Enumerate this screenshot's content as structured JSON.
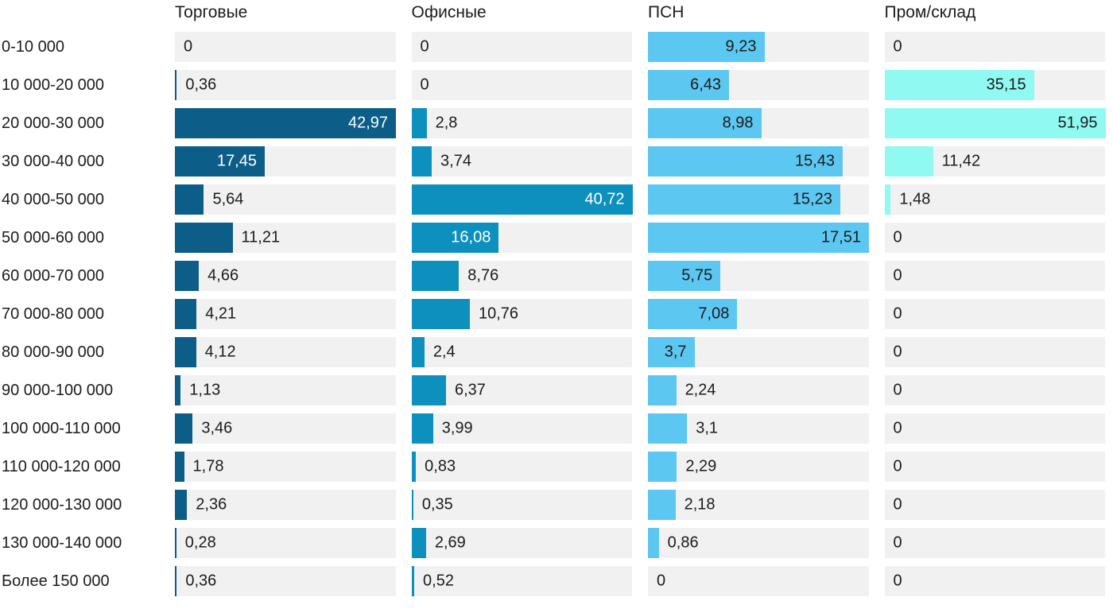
{
  "colors": {
    "track_bg": "#f1f1f1",
    "text": "#1c1c1c",
    "background": "#ffffff"
  },
  "chart_data": {
    "type": "bar",
    "orientation": "horizontal",
    "title": "",
    "xlabel": "",
    "ylabel": "",
    "grid": false,
    "legend_position": "column-headers-top",
    "decimal_separator": ",",
    "each_column_scaled_to_own_max": true,
    "categories": [
      "0-10 000",
      "10 000-20 000",
      "20 000-30 000",
      "30 000-40 000",
      "40 000-50 000",
      "50 000-60 000",
      "60 000-70 000",
      "70 000-80 000",
      "80 000-90 000",
      "90 000-100 000",
      "100 000-110 000",
      "110 000-120 000",
      "120 000-130 000",
      "130 000-140 000",
      "Более 150 000"
    ],
    "series": [
      {
        "name": "Торговые",
        "color": "#0C5E88",
        "label_inside_color": "#ffffff",
        "values": [
          0,
          0.36,
          42.97,
          17.45,
          5.64,
          11.21,
          4.66,
          4.21,
          4.12,
          1.13,
          3.46,
          1.78,
          2.36,
          0.28,
          0.36
        ]
      },
      {
        "name": "Офисные",
        "color": "#0E90BE",
        "label_inside_color": "#ffffff",
        "values": [
          0,
          0,
          2.8,
          3.74,
          40.72,
          16.08,
          8.76,
          10.76,
          2.4,
          6.37,
          3.99,
          0.83,
          0.35,
          2.69,
          0.52
        ]
      },
      {
        "name": "ПСН",
        "color": "#5CC7F1",
        "label_inside_color": "#1c1c1c",
        "values": [
          9.23,
          6.43,
          8.98,
          15.43,
          15.23,
          17.51,
          5.75,
          7.08,
          3.7,
          2.24,
          3.1,
          2.29,
          2.18,
          0.86,
          0
        ]
      },
      {
        "name": "Пром/склад",
        "color": "#90FAF2",
        "label_inside_color": "#1c1c1c",
        "values": [
          0,
          35.15,
          51.95,
          11.42,
          1.48,
          0,
          0,
          0,
          0,
          0,
          0,
          0,
          0,
          0,
          0
        ]
      }
    ]
  }
}
